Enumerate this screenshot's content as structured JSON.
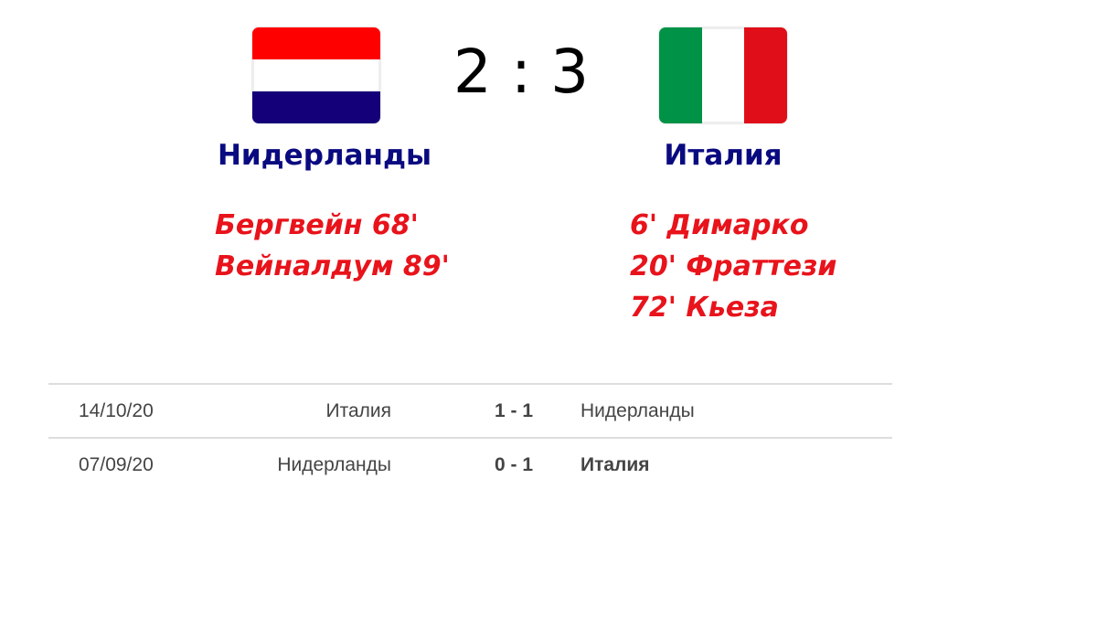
{
  "match": {
    "score": "2 : 3",
    "home": {
      "name": "Нидерланды",
      "flag_colors": [
        "#ff0000",
        "#ffffff",
        "#140078"
      ],
      "scorers": [
        "Бергвейн 68'",
        "Вейналдум 89'"
      ]
    },
    "away": {
      "name": "Италия",
      "flag_colors": [
        "#009246",
        "#ffffff",
        "#e00e18"
      ],
      "scorers": [
        "6' Димарко",
        "20' Фраттези",
        "72' Кьеза"
      ]
    }
  },
  "history": [
    {
      "date": "14/10/20",
      "home": "Италия",
      "score": "1 - 1",
      "away": "Нидерланды",
      "winner": "none"
    },
    {
      "date": "07/09/20",
      "home": "Нидерланды",
      "score": "0 - 1",
      "away": "Италия",
      "winner": "away"
    }
  ]
}
